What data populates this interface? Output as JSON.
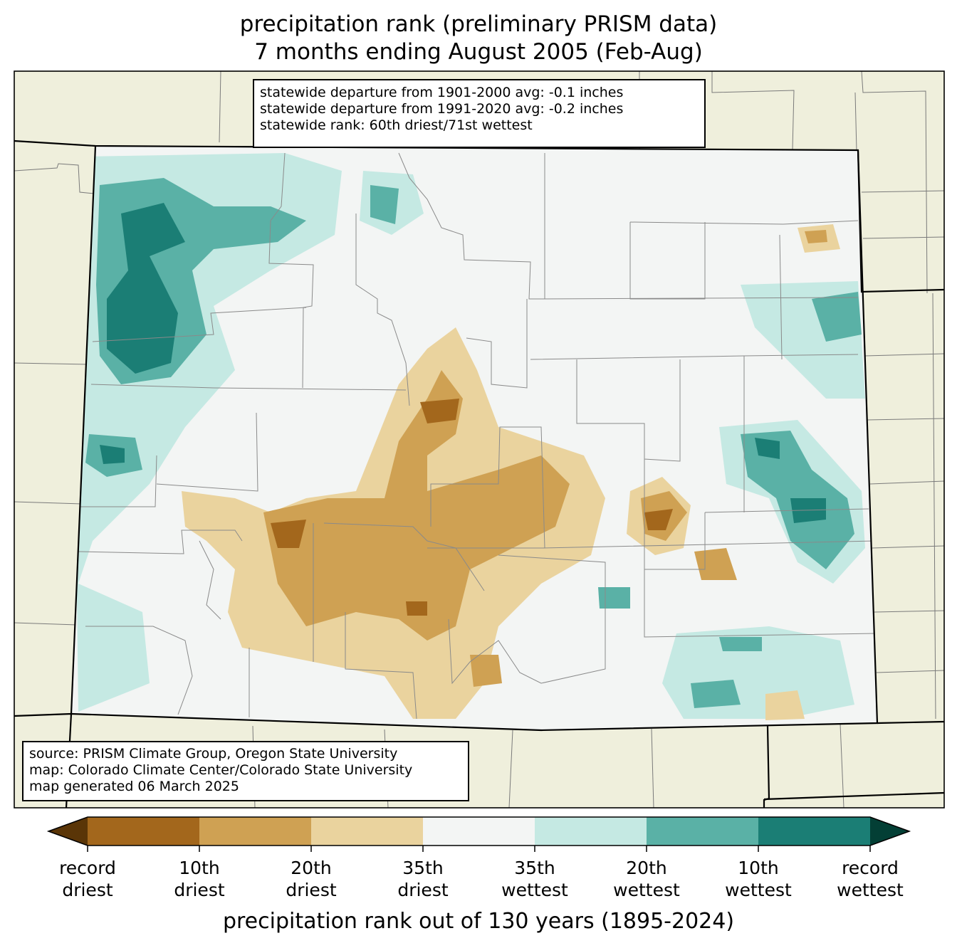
{
  "title_line1": "precipitation rank (preliminary PRISM data)",
  "title_line2": "7 months ending August 2005 (Feb-Aug)",
  "stats": [
    "statewide departure from 1901-2000 avg: -0.1 inches",
    "statewide departure from 1991-2020 avg: -0.2 inches",
    "statewide rank: 60th driest/71st wettest"
  ],
  "credits": [
    "source: PRISM Climate Group, Oregon State University",
    "map: Colorado Climate Center/Colorado State University",
    "map generated 06 March 2025"
  ],
  "colorbar": {
    "title": "precipitation rank out of 130 years (1895-2024)",
    "colors": [
      "#5a3507",
      "#a3671c",
      "#cfa153",
      "#ead39e",
      "#f3f5f4",
      "#c5e9e3",
      "#5ab1a6",
      "#1b7e75",
      "#033f35"
    ],
    "ticks": [
      {
        "line1": "record",
        "line2": "driest"
      },
      {
        "line1": "10th",
        "line2": "driest"
      },
      {
        "line1": "20th",
        "line2": "driest"
      },
      {
        "line1": "35th",
        "line2": "driest"
      },
      {
        "line1": "35th",
        "line2": "wettest"
      },
      {
        "line1": "20th",
        "line2": "wettest"
      },
      {
        "line1": "10th",
        "line2": "wettest"
      },
      {
        "line1": "record",
        "line2": "wettest"
      }
    ]
  }
}
